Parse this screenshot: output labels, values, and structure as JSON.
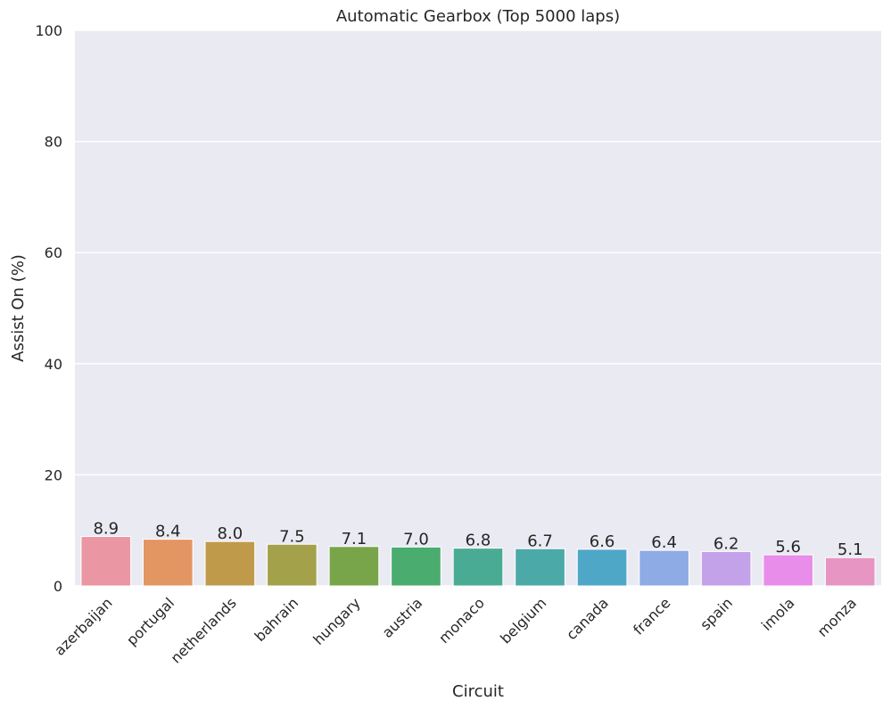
{
  "chart_data": {
    "type": "bar",
    "title": "Automatic Gearbox (Top 5000 laps)",
    "xlabel": "Circuit",
    "ylabel": "Assist On (%)",
    "ylim": [
      0,
      100
    ],
    "yticks": [
      0,
      20,
      40,
      60,
      80,
      100
    ],
    "grid": true,
    "legend": "none",
    "categories": [
      "azerbaijan",
      "portugal",
      "netherlands",
      "bahrain",
      "hungary",
      "austria",
      "monaco",
      "belgium",
      "canada",
      "france",
      "spain",
      "imola",
      "monza"
    ],
    "values": [
      8.9,
      8.4,
      8.0,
      7.5,
      7.1,
      7.0,
      6.8,
      6.7,
      6.6,
      6.4,
      6.2,
      5.6,
      5.1
    ],
    "data_labels": [
      "8.9",
      "8.4",
      "8.0",
      "7.5",
      "7.1",
      "7.0",
      "6.8",
      "6.7",
      "6.6",
      "6.4",
      "6.2",
      "5.6",
      "5.1"
    ],
    "colors": [
      "#ea96a3",
      "#e39562",
      "#c09a4b",
      "#a3a24a",
      "#78a549",
      "#4aac6e",
      "#4aab95",
      "#4ba9a8",
      "#4fa7c7",
      "#8fabe6",
      "#c3a2ea",
      "#e88dea",
      "#e795c3"
    ],
    "background_color": "#eaeaf2",
    "grid_color": "#ffffff"
  }
}
